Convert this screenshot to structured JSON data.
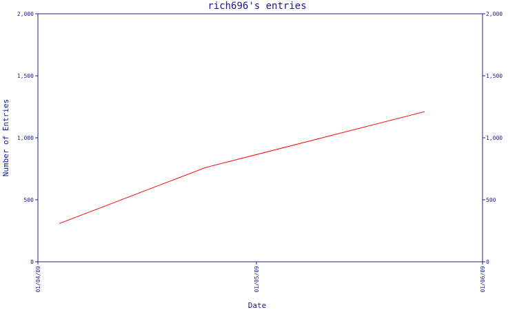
{
  "chart_data": {
    "type": "line",
    "title": "rich696's entries",
    "xlabel": "Date",
    "ylabel": "Number of Entries",
    "ylim": [
      0,
      2000
    ],
    "y_ticks": [
      {
        "value": 0,
        "label": "0"
      },
      {
        "value": 500,
        "label": "500"
      },
      {
        "value": 1000,
        "label": "1,000"
      },
      {
        "value": 1500,
        "label": "1,500"
      },
      {
        "value": 2000,
        "label": "2,000"
      }
    ],
    "xlim": [
      "2009-04-01",
      "2009-06-01"
    ],
    "x_ticks": [
      {
        "value": "2009-04-01",
        "label": "01/04/09"
      },
      {
        "value": "2009-05-01",
        "label": "01/05/09"
      },
      {
        "value": "2009-06-01",
        "label": "01/06/09"
      }
    ],
    "series": [
      {
        "points": [
          {
            "x": "2009-04-04",
            "y": 310
          },
          {
            "x": "2009-04-24",
            "y": 760
          },
          {
            "x": "2009-05-24",
            "y": 1210
          }
        ]
      }
    ],
    "grid": false,
    "secondary_y_axis": true,
    "colors": {
      "axis": "#1a1a8c",
      "line": "#ff0000"
    }
  }
}
